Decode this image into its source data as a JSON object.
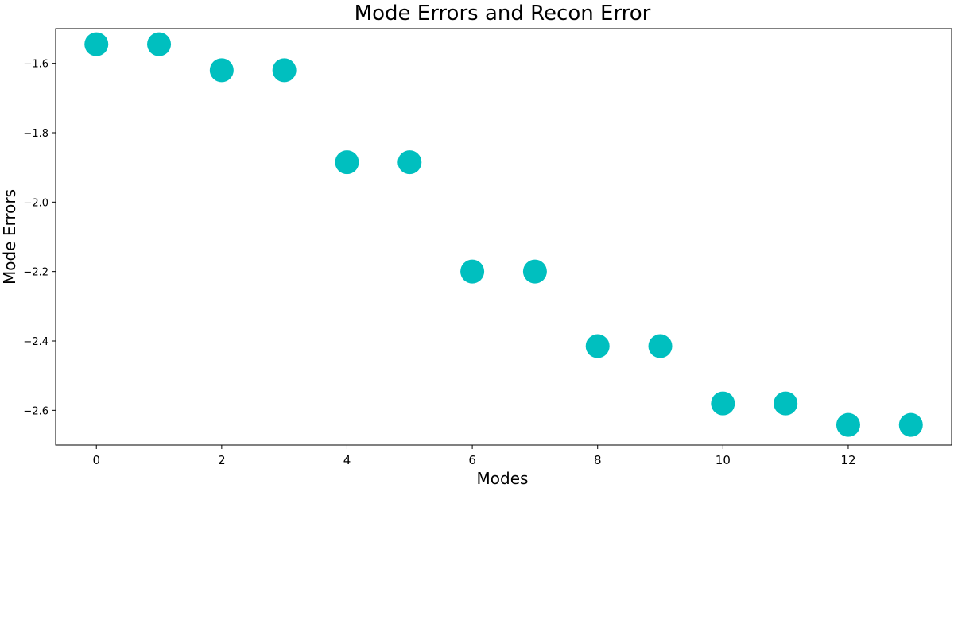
{
  "chart_data": {
    "type": "scatter",
    "title": "Mode Errors and Recon Error",
    "xlabel": "Modes",
    "ylabel": "Mode Errors",
    "x": [
      0,
      1,
      2,
      3,
      4,
      5,
      6,
      7,
      8,
      9,
      10,
      11,
      12,
      13
    ],
    "series": [
      {
        "values": [
          -1.545,
          -1.545,
          -1.62,
          -1.62,
          -1.885,
          -1.885,
          -2.2,
          -2.2,
          -2.415,
          -2.415,
          -2.58,
          -2.58,
          -2.642,
          -2.642
        ],
        "color": "#00BFBF"
      }
    ],
    "xlim": [
      -0.65,
      13.65
    ],
    "ylim": [
      -2.7,
      -1.5
    ],
    "xticks": [
      0,
      2,
      4,
      6,
      8,
      10,
      12
    ],
    "xtick_labels": [
      "0",
      "2",
      "4",
      "6",
      "8",
      "10",
      "12"
    ],
    "yticks": [
      -1.6,
      -1.8,
      -2.0,
      -2.2,
      -2.4,
      -2.6
    ],
    "ytick_labels": [
      "−1.6",
      "−1.8",
      "−2.0",
      "−2.2",
      "−2.4",
      "−2.6"
    ],
    "grid": false,
    "legend": "none"
  }
}
